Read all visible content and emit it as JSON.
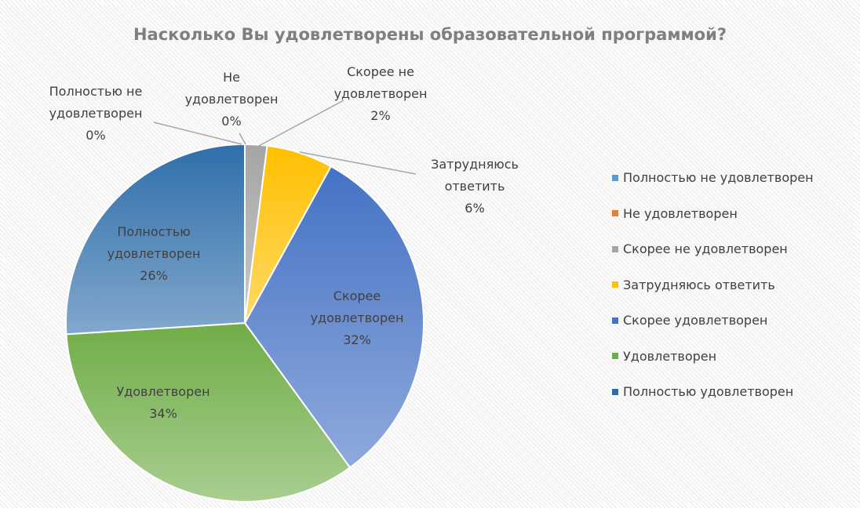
{
  "chart_data": {
    "type": "pie",
    "title": "Насколько Вы удовлетворены образовательной программой?",
    "categories": [
      "Полностью не удовлетворен",
      "Не удовлетворен",
      "Скорее не удовлетворен",
      "Затрудняюсь ответить",
      "Скорее удовлетворен",
      "Удовлетворен",
      "Полностью удовлетворен"
    ],
    "values": [
      0,
      0,
      2,
      6,
      32,
      34,
      26
    ],
    "value_labels": [
      "0%",
      "0%",
      "2%",
      "6%",
      "32%",
      "34%",
      "26%"
    ],
    "colors": [
      "#5b9bd5",
      "#ed7d31",
      "#a5a5a5",
      "#ffc000",
      "#4472c4",
      "#70ad47",
      "#2f6eaa"
    ],
    "legend": "right"
  }
}
